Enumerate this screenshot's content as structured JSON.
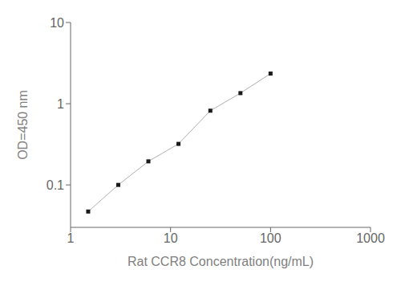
{
  "chart_data": {
    "type": "line",
    "x": [
      1.5,
      3,
      6,
      12,
      25,
      50,
      100
    ],
    "values": [
      0.047,
      0.1,
      0.195,
      0.32,
      0.82,
      1.35,
      2.35
    ],
    "xlabel": "Rat CCR8 Concentration(ng/mL)",
    "ylabel": "OD=450 nm",
    "xlim": [
      1,
      1000
    ],
    "ylim": [
      0.03,
      10
    ],
    "xticks": [
      1,
      10,
      100,
      1000
    ],
    "yticks": [
      0.1,
      1,
      10
    ],
    "log": true,
    "grid": false,
    "color": "#b0b0b0",
    "colors": [
      "#1a1a1a",
      "#1a1a1a",
      "#1a1a1a",
      "#1a1a1a",
      "#1a1a1a",
      "#1a1a1a",
      "#1a1a1a"
    ],
    "marker": "square"
  }
}
